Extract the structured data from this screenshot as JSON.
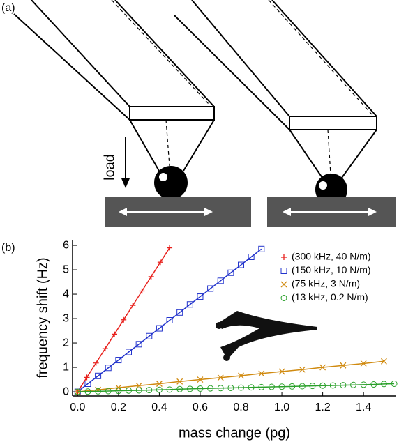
{
  "panel_a": {
    "label": "(a)",
    "load_label": "load"
  },
  "panel_b_label": "(b)",
  "chart_data": {
    "type": "line",
    "x_label": "mass change (pg)",
    "y_label": "frequency shift (Hz)",
    "xlim": [
      -0.025,
      1.56
    ],
    "ylim": [
      -0.17,
      6.23
    ],
    "xticks": [
      {
        "value": 0,
        "label": "0.0"
      },
      0.2,
      0.4,
      0.6,
      0.8,
      {
        "value": 1,
        "label": "1.0"
      },
      1.2,
      1.4
    ],
    "yticks": [
      0,
      1,
      2,
      3,
      4,
      5,
      6
    ],
    "grid": false,
    "legend": "upper right",
    "series": [
      {
        "name": "(300 kHz, 40 N/m)",
        "color": "#e8201c",
        "marker": "plus",
        "x": [
          0,
          0.045,
          0.09,
          0.135,
          0.18,
          0.225,
          0.27,
          0.315,
          0.36,
          0.405,
          0.45
        ],
        "values": [
          0,
          0.59,
          1.18,
          1.77,
          2.36,
          2.95,
          3.54,
          4.13,
          4.72,
          5.31,
          5.9
        ]
      },
      {
        "name": "(150 kHz, 10 N/m)",
        "color": "#2233cc",
        "marker": "square",
        "x": [
          0,
          0.05,
          0.1,
          0.15,
          0.2,
          0.25,
          0.3,
          0.35,
          0.4,
          0.45,
          0.5,
          0.55,
          0.6,
          0.65,
          0.7,
          0.75,
          0.8,
          0.85,
          0.9
        ],
        "values": [
          0,
          0.33,
          0.65,
          0.98,
          1.3,
          1.63,
          1.95,
          2.28,
          2.6,
          2.93,
          3.25,
          3.58,
          3.9,
          4.23,
          4.55,
          4.88,
          5.2,
          5.53,
          5.85
        ]
      },
      {
        "name": "(75 kHz, 3 N/m)",
        "color": "#d08a10",
        "marker": "cross",
        "x": [
          0,
          0.1,
          0.2,
          0.3,
          0.4,
          0.5,
          0.6,
          0.7,
          0.8,
          0.9,
          1,
          1.1,
          1.2,
          1.3,
          1.4,
          1.5
        ],
        "values": [
          0,
          0.08,
          0.17,
          0.25,
          0.33,
          0.42,
          0.5,
          0.58,
          0.66,
          0.75,
          0.83,
          0.91,
          1.0,
          1.08,
          1.16,
          1.25
        ]
      },
      {
        "name": "(13 kHz, 0.2 N/m)",
        "color": "#2aa02a",
        "marker": "circle",
        "x": [
          0,
          0.05,
          0.1,
          0.15,
          0.2,
          0.25,
          0.3,
          0.35,
          0.4,
          0.45,
          0.5,
          0.55,
          0.6,
          0.65,
          0.7,
          0.75,
          0.8,
          0.85,
          0.9,
          0.95,
          1,
          1.05,
          1.1,
          1.15,
          1.2,
          1.25,
          1.3,
          1.35,
          1.4,
          1.45,
          1.5,
          1.55
        ],
        "values": [
          0,
          0.01,
          0.02,
          0.03,
          0.04,
          0.05,
          0.06,
          0.07,
          0.08,
          0.09,
          0.11,
          0.12,
          0.13,
          0.14,
          0.15,
          0.16,
          0.17,
          0.18,
          0.19,
          0.2,
          0.21,
          0.22,
          0.23,
          0.24,
          0.25,
          0.26,
          0.27,
          0.28,
          0.29,
          0.3,
          0.32,
          0.33
        ]
      }
    ]
  }
}
